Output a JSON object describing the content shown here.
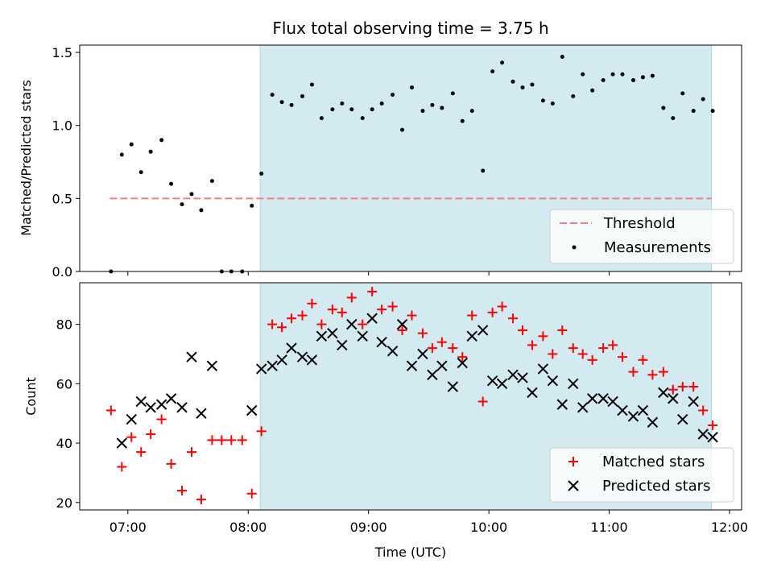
{
  "figure": {
    "title": "Flux total observing time = 3.75 h",
    "xlabel": "Time (UTC)",
    "x_ticks": [
      "07:00",
      "08:00",
      "09:00",
      "10:00",
      "11:00",
      "12:00"
    ],
    "x_tick_hours": [
      7,
      8,
      9,
      10,
      11,
      12
    ],
    "xlim_hours": [
      6.6,
      12.1
    ],
    "shaded_region_hours": [
      8.1,
      11.85
    ]
  },
  "colors": {
    "shade": "#d3eaf1",
    "threshold": "#f08080",
    "measurements": "#000000",
    "matched": "#ff0000",
    "predicted": "#000000"
  },
  "chart_data": [
    {
      "type": "scatter",
      "ylabel": "Matched/Predicted stars",
      "ylim": [
        0,
        1.55
      ],
      "y_ticks": [
        0.0,
        0.5,
        1.0,
        1.5
      ],
      "y_tick_labels": [
        "0.0",
        "0.5",
        "1.0",
        "1.5"
      ],
      "legend_position": "lower-right",
      "threshold": {
        "name": "Threshold",
        "value": 0.5,
        "x_range": [
          6.85,
          11.85
        ]
      },
      "series": [
        {
          "name": "Measurements",
          "marker": "dot",
          "points": [
            [
              6.86,
              0.0
            ],
            [
              6.95,
              0.8
            ],
            [
              7.03,
              0.87
            ],
            [
              7.11,
              0.68
            ],
            [
              7.19,
              0.82
            ],
            [
              7.28,
              0.9
            ],
            [
              7.36,
              0.6
            ],
            [
              7.45,
              0.46
            ],
            [
              7.53,
              0.53
            ],
            [
              7.61,
              0.42
            ],
            [
              7.7,
              0.62
            ],
            [
              7.78,
              0.0
            ],
            [
              7.86,
              0.0
            ],
            [
              7.95,
              0.0
            ],
            [
              8.03,
              0.45
            ],
            [
              8.11,
              0.67
            ],
            [
              8.2,
              1.21
            ],
            [
              8.28,
              1.16
            ],
            [
              8.36,
              1.14
            ],
            [
              8.45,
              1.2
            ],
            [
              8.53,
              1.28
            ],
            [
              8.61,
              1.05
            ],
            [
              8.7,
              1.11
            ],
            [
              8.78,
              1.15
            ],
            [
              8.86,
              1.11
            ],
            [
              8.95,
              1.05
            ],
            [
              9.03,
              1.11
            ],
            [
              9.11,
              1.15
            ],
            [
              9.2,
              1.21
            ],
            [
              9.28,
              0.97
            ],
            [
              9.36,
              1.26
            ],
            [
              9.45,
              1.1
            ],
            [
              9.53,
              1.14
            ],
            [
              9.61,
              1.12
            ],
            [
              9.7,
              1.22
            ],
            [
              9.78,
              1.03
            ],
            [
              9.86,
              1.1
            ],
            [
              9.95,
              0.69
            ],
            [
              10.03,
              1.37
            ],
            [
              10.11,
              1.43
            ],
            [
              10.2,
              1.3
            ],
            [
              10.28,
              1.26
            ],
            [
              10.36,
              1.28
            ],
            [
              10.45,
              1.17
            ],
            [
              10.53,
              1.15
            ],
            [
              10.61,
              1.47
            ],
            [
              10.7,
              1.2
            ],
            [
              10.78,
              1.35
            ],
            [
              10.86,
              1.24
            ],
            [
              10.95,
              1.31
            ],
            [
              11.03,
              1.35
            ],
            [
              11.11,
              1.35
            ],
            [
              11.2,
              1.31
            ],
            [
              11.28,
              1.33
            ],
            [
              11.36,
              1.34
            ],
            [
              11.45,
              1.12
            ],
            [
              11.53,
              1.05
            ],
            [
              11.61,
              1.22
            ],
            [
              11.7,
              1.1
            ],
            [
              11.78,
              1.18
            ],
            [
              11.86,
              1.1
            ]
          ]
        }
      ]
    },
    {
      "type": "scatter",
      "ylabel": "Count",
      "ylim": [
        17.5,
        94
      ],
      "y_ticks": [
        20,
        40,
        60,
        80
      ],
      "y_tick_labels": [
        "20",
        "40",
        "60",
        "80"
      ],
      "legend_position": "lower-right",
      "series": [
        {
          "name": "Matched stars",
          "marker": "plus",
          "points": [
            [
              6.86,
              51
            ],
            [
              6.95,
              32
            ],
            [
              7.03,
              42
            ],
            [
              7.11,
              37
            ],
            [
              7.19,
              43
            ],
            [
              7.28,
              48
            ],
            [
              7.36,
              33
            ],
            [
              7.45,
              24
            ],
            [
              7.53,
              37
            ],
            [
              7.61,
              21
            ],
            [
              7.7,
              41
            ],
            [
              7.78,
              41
            ],
            [
              7.86,
              41
            ],
            [
              7.95,
              41
            ],
            [
              8.03,
              23
            ],
            [
              8.11,
              44
            ],
            [
              8.2,
              80
            ],
            [
              8.28,
              79
            ],
            [
              8.36,
              82
            ],
            [
              8.45,
              83
            ],
            [
              8.53,
              87
            ],
            [
              8.61,
              80
            ],
            [
              8.7,
              85
            ],
            [
              8.78,
              84
            ],
            [
              8.86,
              89
            ],
            [
              8.95,
              80
            ],
            [
              9.03,
              91
            ],
            [
              9.11,
              85
            ],
            [
              9.2,
              86
            ],
            [
              9.28,
              78
            ],
            [
              9.36,
              83
            ],
            [
              9.45,
              77
            ],
            [
              9.53,
              72
            ],
            [
              9.61,
              74
            ],
            [
              9.7,
              72
            ],
            [
              9.78,
              69
            ],
            [
              9.86,
              83
            ],
            [
              9.95,
              54
            ],
            [
              10.03,
              84
            ],
            [
              10.11,
              86
            ],
            [
              10.2,
              82
            ],
            [
              10.28,
              78
            ],
            [
              10.36,
              73
            ],
            [
              10.45,
              76
            ],
            [
              10.53,
              70
            ],
            [
              10.61,
              78
            ],
            [
              10.7,
              72
            ],
            [
              10.78,
              70
            ],
            [
              10.86,
              68
            ],
            [
              10.95,
              72
            ],
            [
              11.03,
              73
            ],
            [
              11.11,
              69
            ],
            [
              11.2,
              64
            ],
            [
              11.28,
              68
            ],
            [
              11.36,
              63
            ],
            [
              11.45,
              64
            ],
            [
              11.53,
              58
            ],
            [
              11.61,
              59
            ],
            [
              11.7,
              59
            ],
            [
              11.78,
              51
            ],
            [
              11.86,
              46
            ]
          ]
        },
        {
          "name": "Predicted stars",
          "marker": "x",
          "points": [
            [
              6.95,
              40
            ],
            [
              7.03,
              48
            ],
            [
              7.11,
              54
            ],
            [
              7.19,
              52
            ],
            [
              7.28,
              53
            ],
            [
              7.36,
              55
            ],
            [
              7.45,
              52
            ],
            [
              7.53,
              69
            ],
            [
              7.61,
              50
            ],
            [
              7.7,
              66
            ],
            [
              8.03,
              51
            ],
            [
              8.11,
              65
            ],
            [
              8.2,
              66
            ],
            [
              8.28,
              68
            ],
            [
              8.36,
              72
            ],
            [
              8.45,
              69
            ],
            [
              8.53,
              68
            ],
            [
              8.61,
              76
            ],
            [
              8.7,
              77
            ],
            [
              8.78,
              73
            ],
            [
              8.86,
              80
            ],
            [
              8.95,
              76
            ],
            [
              9.03,
              82
            ],
            [
              9.11,
              74
            ],
            [
              9.2,
              71
            ],
            [
              9.28,
              80
            ],
            [
              9.36,
              66
            ],
            [
              9.45,
              70
            ],
            [
              9.53,
              63
            ],
            [
              9.61,
              66
            ],
            [
              9.7,
              59
            ],
            [
              9.78,
              67
            ],
            [
              9.86,
              76
            ],
            [
              9.95,
              78
            ],
            [
              10.03,
              61
            ],
            [
              10.11,
              60
            ],
            [
              10.2,
              63
            ],
            [
              10.28,
              62
            ],
            [
              10.36,
              57
            ],
            [
              10.45,
              65
            ],
            [
              10.53,
              61
            ],
            [
              10.61,
              53
            ],
            [
              10.7,
              60
            ],
            [
              10.78,
              52
            ],
            [
              10.86,
              55
            ],
            [
              10.95,
              55
            ],
            [
              11.03,
              54
            ],
            [
              11.11,
              51
            ],
            [
              11.2,
              49
            ],
            [
              11.28,
              51
            ],
            [
              11.36,
              47
            ],
            [
              11.45,
              57
            ],
            [
              11.53,
              55
            ],
            [
              11.61,
              48
            ],
            [
              11.7,
              54
            ],
            [
              11.78,
              43
            ],
            [
              11.86,
              42
            ]
          ]
        }
      ]
    }
  ]
}
